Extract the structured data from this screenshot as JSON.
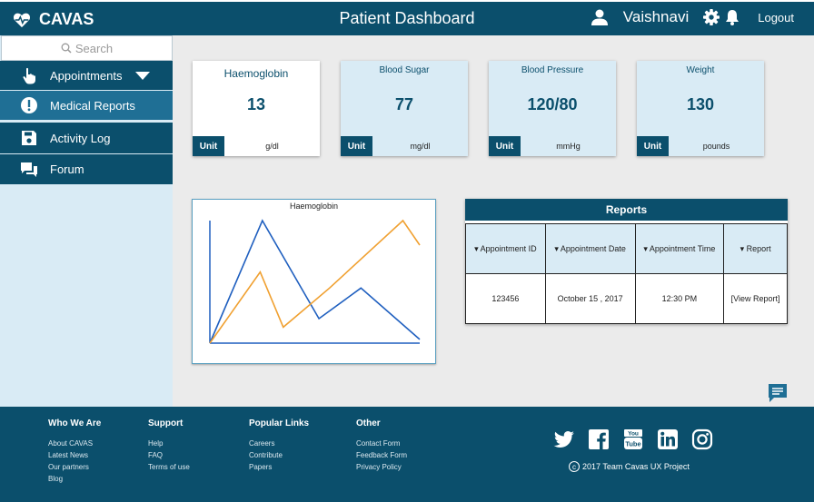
{
  "header": {
    "brand": "CAVAS",
    "title": "Patient Dashboard",
    "username": "Vaishnavi",
    "logout_label": "Logout"
  },
  "sidebar": {
    "search_placeholder": "Search",
    "items": [
      {
        "label": "Appointments",
        "icon": "touch-icon"
      },
      {
        "label": "Medical Reports",
        "icon": "alert-icon"
      },
      {
        "label": "Activity Log",
        "icon": "save-icon"
      },
      {
        "label": "Forum",
        "icon": "forum-icon"
      }
    ]
  },
  "cards": [
    {
      "title": "Haemoglobin",
      "value": "13",
      "unit_label": "Unit",
      "unit": "g/dl"
    },
    {
      "title": "Blood Sugar",
      "value": "77",
      "unit_label": "Unit",
      "unit": "mg/dl"
    },
    {
      "title": "Blood Pressure",
      "value": "120/80",
      "unit_label": "Unit",
      "unit": "mmHg"
    },
    {
      "title": "Weight",
      "value": "130",
      "unit_label": "Unit",
      "unit": "pounds"
    }
  ],
  "chart": {
    "title": "Haemoglobin"
  },
  "chart_data": {
    "type": "line",
    "title": "Haemoglobin",
    "xlabel": "",
    "ylabel": "",
    "grid": false,
    "x": [
      0,
      1,
      2,
      3,
      4,
      5
    ],
    "series": [
      {
        "color": "#1f5fbf",
        "values": [
          0,
          10,
          2,
          4.5,
          0.3,
          null
        ]
      },
      {
        "color": "#f0a030",
        "values": [
          0,
          5.8,
          1.3,
          4.5,
          10,
          8
        ]
      }
    ],
    "series_x": [
      [
        0,
        0.25,
        0.52,
        0.72,
        1.0
      ],
      [
        0,
        0.24,
        0.35,
        0.57,
        0.92,
        1.0
      ]
    ],
    "ylim": [
      0,
      10
    ]
  },
  "reports": {
    "title": "Reports",
    "columns": [
      "▾ Appointment ID",
      "▾ Appointment Date",
      "▾ Appointment Time",
      "▾ Report"
    ],
    "rows": [
      [
        "123456",
        "October 15 , 2017",
        "12:30 PM",
        "[View Report]"
      ]
    ]
  },
  "footer": {
    "columns": [
      {
        "heading": "Who We Are",
        "links": [
          "About CAVAS",
          "Latest News",
          "Our partners",
          "Blog"
        ]
      },
      {
        "heading": "Support",
        "links": [
          "Help",
          "FAQ",
          "Terms of use"
        ]
      },
      {
        "heading": "Popular Links",
        "links": [
          "Careers",
          "Contribute",
          "Papers"
        ]
      },
      {
        "heading": "Other",
        "links": [
          "Contact Form",
          "Feedback Form",
          "Privacy Policy"
        ]
      }
    ],
    "socials": [
      "twitter-icon",
      "facebook-icon",
      "youtube-icon",
      "linkedin-icon",
      "instagram-icon"
    ],
    "copyright": "2017 Team Cavas UX Project"
  },
  "colors": {
    "primary": "#0b4f6c",
    "active": "#1f6f95",
    "light": "#d9ebf5",
    "line_blue": "#1f5fbf",
    "line_orange": "#f0a030"
  }
}
